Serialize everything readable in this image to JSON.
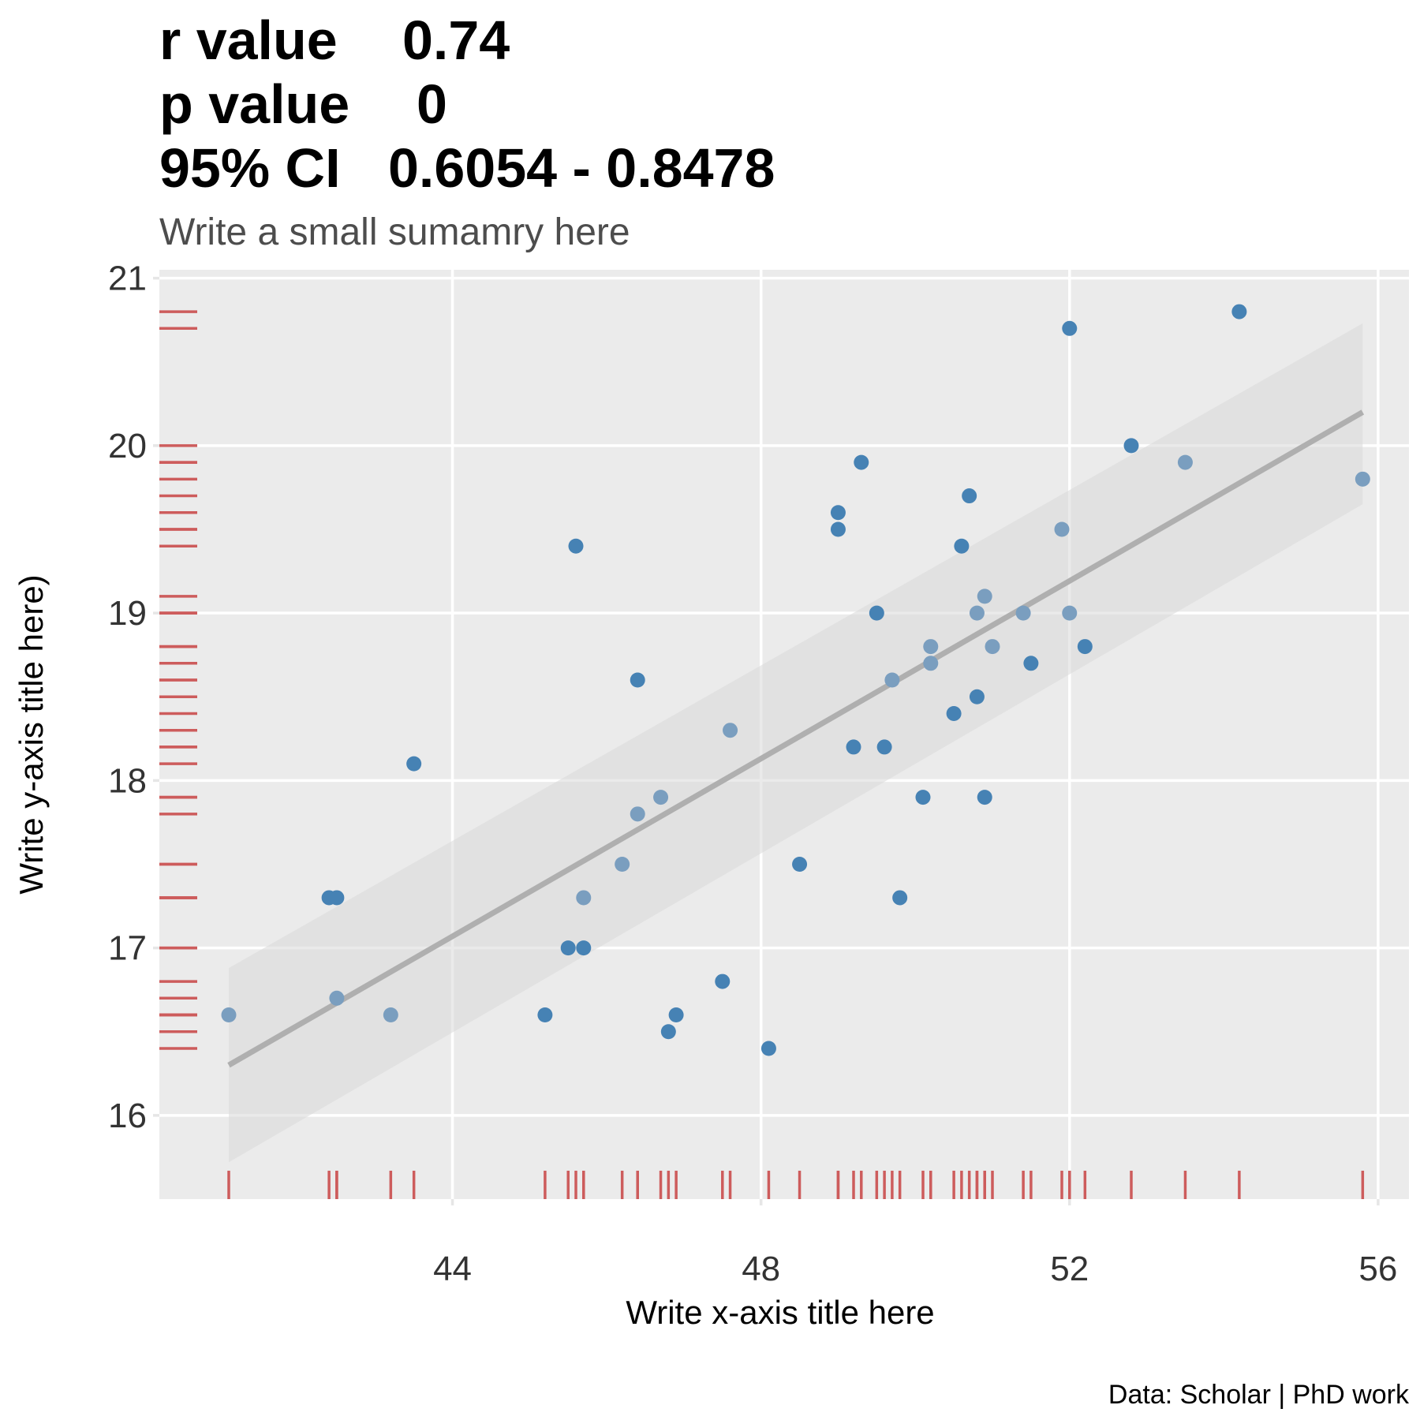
{
  "chart_data": {
    "type": "scatter",
    "title_lines": [
      {
        "label": "r value",
        "value": "0.74"
      },
      {
        "label": "p value",
        "value": "0"
      },
      {
        "label": "95% CI",
        "value": "0.6054 - 0.8478"
      }
    ],
    "subtitle": "Write a small sumamry here",
    "xlabel": "Write x-axis title here",
    "ylabel": "Write y-axis title here)",
    "caption": "Data: Scholar | PhD work",
    "xlim": [
      40.2,
      56.4
    ],
    "ylim": [
      15.5,
      21.05
    ],
    "xticks": [
      44,
      48,
      52,
      56
    ],
    "yticks": [
      16,
      17,
      18,
      19,
      20,
      21
    ],
    "grid": true,
    "fit": {
      "method": "linear",
      "x": [
        41.1,
        55.8
      ],
      "y": [
        16.3,
        20.2
      ],
      "ci_lower": [
        15.72,
        19.65
      ],
      "ci_upper": [
        16.88,
        20.73
      ]
    },
    "rug": {
      "x": true,
      "y": true
    },
    "colors": {
      "point": "#4682b4",
      "point_light": "#7a9ebf",
      "fit_line": "#afafaf",
      "ci_band": "#d9d9d9",
      "rug": "#cd5c5c",
      "panel": "#ebebeb",
      "grid": "#ffffff"
    },
    "series": [
      {
        "name": "observations",
        "x": [
          41.1,
          42.4,
          42.5,
          42.5,
          43.2,
          43.5,
          45.2,
          45.5,
          45.6,
          45.7,
          45.7,
          46.2,
          46.4,
          46.4,
          46.7,
          46.8,
          46.9,
          47.5,
          47.6,
          48.1,
          48.5,
          49.0,
          49.0,
          49.2,
          49.3,
          49.5,
          49.6,
          49.7,
          49.8,
          50.1,
          50.2,
          50.2,
          50.5,
          50.6,
          50.7,
          50.8,
          50.8,
          50.9,
          50.9,
          51.0,
          51.4,
          51.5,
          51.9,
          52.0,
          52.0,
          52.2,
          52.8,
          53.5,
          54.2,
          55.8
        ],
        "y": [
          16.6,
          17.3,
          17.3,
          16.7,
          16.6,
          18.1,
          16.6,
          17.0,
          19.4,
          17.3,
          17.0,
          17.5,
          18.6,
          17.8,
          17.9,
          16.5,
          16.6,
          16.8,
          18.3,
          16.4,
          17.5,
          19.6,
          19.5,
          18.2,
          19.9,
          19.0,
          18.2,
          18.6,
          17.3,
          17.9,
          18.8,
          18.7,
          18.4,
          19.4,
          19.7,
          19.0,
          18.5,
          17.9,
          19.1,
          18.8,
          19.0,
          18.7,
          19.5,
          20.7,
          19.0,
          18.8,
          20.0,
          19.9,
          20.8,
          19.8
        ],
        "light": [
          1,
          0,
          0,
          1,
          1,
          0,
          0,
          0,
          0,
          1,
          0,
          1,
          0,
          1,
          1,
          0,
          0,
          0,
          1,
          0,
          0,
          0,
          0,
          0,
          0,
          0,
          0,
          1,
          0,
          0,
          1,
          1,
          0,
          0,
          0,
          1,
          0,
          0,
          1,
          1,
          1,
          0,
          1,
          0,
          1,
          0,
          0,
          1,
          0,
          1
        ]
      }
    ]
  }
}
